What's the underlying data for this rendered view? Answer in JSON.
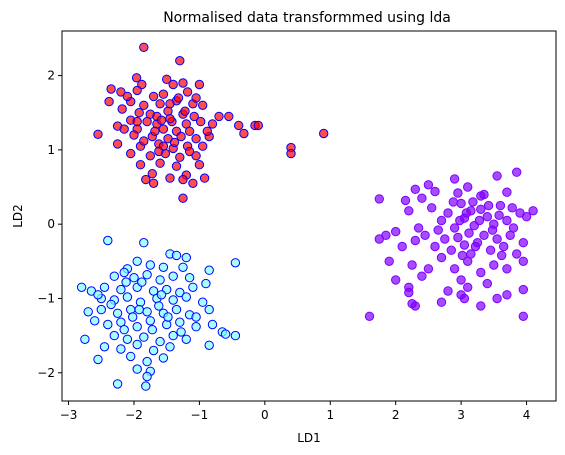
{
  "chart_data": {
    "type": "scatter",
    "title": "Normalised data transformmed using lda",
    "xlabel": "LD1",
    "ylabel": "LD2",
    "xlim": [
      -3.1,
      4.45
    ],
    "ylim": [
      -2.38,
      2.6
    ],
    "xticks": [
      -3,
      -2,
      -1,
      0,
      1,
      2,
      3,
      4
    ],
    "yticks": [
      -2,
      -1,
      0,
      1,
      2
    ],
    "grid": false,
    "legend": "none",
    "series": [
      {
        "fill": "#ff0000",
        "edge": "#0000ff",
        "points": [
          [
            -1.85,
            2.38
          ],
          [
            -1.3,
            2.2
          ],
          [
            -1.96,
            1.97
          ],
          [
            -1.88,
            1.88
          ],
          [
            -1.5,
            1.95
          ],
          [
            -1.4,
            1.88
          ],
          [
            -1.25,
            1.9
          ],
          [
            -1.0,
            1.88
          ],
          [
            -2.35,
            1.82
          ],
          [
            -2.2,
            1.78
          ],
          [
            -1.95,
            1.8
          ],
          [
            -1.7,
            1.72
          ],
          [
            -1.55,
            1.75
          ],
          [
            -1.18,
            1.78
          ],
          [
            -2.38,
            1.65
          ],
          [
            -2.05,
            1.65
          ],
          [
            -1.85,
            1.6
          ],
          [
            -1.6,
            1.62
          ],
          [
            -1.35,
            1.66
          ],
          [
            -1.1,
            1.62
          ],
          [
            -0.95,
            1.6
          ],
          [
            -2.18,
            1.55
          ],
          [
            -1.92,
            1.5
          ],
          [
            -1.75,
            1.48
          ],
          [
            -1.48,
            1.52
          ],
          [
            -1.25,
            1.48
          ],
          [
            -1.08,
            1.45
          ],
          [
            -0.7,
            1.45
          ],
          [
            -0.55,
            1.45
          ],
          [
            -2.05,
            1.4
          ],
          [
            -1.8,
            1.38
          ],
          [
            -1.65,
            1.35
          ],
          [
            -1.42,
            1.38
          ],
          [
            -1.2,
            1.35
          ],
          [
            -0.98,
            1.38
          ],
          [
            -0.8,
            1.35
          ],
          [
            -2.25,
            1.32
          ],
          [
            -1.95,
            1.28
          ],
          [
            -1.55,
            1.28
          ],
          [
            -1.35,
            1.25
          ],
          [
            -1.15,
            1.25
          ],
          [
            -0.4,
            1.33
          ],
          [
            -0.15,
            1.33
          ],
          [
            -0.1,
            1.33
          ],
          [
            -2.55,
            1.21
          ],
          [
            -2.0,
            1.2
          ],
          [
            -1.72,
            1.18
          ],
          [
            -1.48,
            1.15
          ],
          [
            -1.28,
            1.18
          ],
          [
            -1.05,
            1.15
          ],
          [
            -0.85,
            1.18
          ],
          [
            -0.32,
            1.22
          ],
          [
            0.9,
            1.22
          ],
          [
            -2.25,
            1.08
          ],
          [
            -1.9,
            1.05
          ],
          [
            -1.62,
            1.08
          ],
          [
            -1.4,
            1.02
          ],
          [
            -1.18,
            1.05
          ],
          [
            -0.95,
            1.05
          ],
          [
            -2.05,
            0.95
          ],
          [
            -1.75,
            0.92
          ],
          [
            -1.52,
            0.95
          ],
          [
            -1.3,
            0.9
          ],
          [
            -1.05,
            0.92
          ],
          [
            -1.9,
            0.8
          ],
          [
            -1.6,
            0.82
          ],
          [
            -1.35,
            0.78
          ],
          [
            -1.0,
            0.8
          ],
          [
            -1.72,
            0.68
          ],
          [
            -1.2,
            0.66
          ],
          [
            -1.82,
            0.6
          ],
          [
            -1.45,
            0.62
          ],
          [
            -1.25,
            0.6
          ],
          [
            -0.92,
            0.62
          ],
          [
            -1.7,
            0.55
          ],
          [
            -1.25,
            0.35
          ],
          [
            0.4,
            1.03
          ],
          [
            0.4,
            0.95
          ],
          [
            -1.65,
            1.45
          ],
          [
            -1.45,
            1.62
          ],
          [
            -1.58,
            1.4
          ],
          [
            -1.22,
            1.52
          ],
          [
            -1.38,
            1.1
          ],
          [
            -1.68,
            1.25
          ],
          [
            -1.85,
            1.12
          ],
          [
            -1.15,
            0.98
          ],
          [
            -0.88,
            1.25
          ],
          [
            -2.1,
            1.72
          ],
          [
            -1.32,
            1.7
          ],
          [
            -1.45,
            1.42
          ],
          [
            -1.05,
            1.7
          ],
          [
            -1.55,
            1.05
          ],
          [
            -1.95,
            1.38
          ],
          [
            -1.62,
            0.98
          ],
          [
            -1.1,
            0.55
          ],
          [
            -2.15,
            1.28
          ]
        ]
      },
      {
        "fill": "#7f00ff",
        "edge": "#7f00ff",
        "points": [
          [
            1.6,
            -1.24
          ],
          [
            1.75,
            0.34
          ],
          [
            2.15,
            0.32
          ],
          [
            2.3,
            0.47
          ],
          [
            2.5,
            0.53
          ],
          [
            2.6,
            0.44
          ],
          [
            2.9,
            0.61
          ],
          [
            2.95,
            0.42
          ],
          [
            3.1,
            0.5
          ],
          [
            3.3,
            0.38
          ],
          [
            3.55,
            0.65
          ],
          [
            3.7,
            0.43
          ],
          [
            3.85,
            0.7
          ],
          [
            2.0,
            -0.1
          ],
          [
            2.2,
            0.18
          ],
          [
            2.35,
            -0.05
          ],
          [
            2.55,
            0.22
          ],
          [
            2.7,
            0.05
          ],
          [
            2.8,
            0.15
          ],
          [
            2.9,
            -0.05
          ],
          [
            3.0,
            0.28
          ],
          [
            3.05,
            0.08
          ],
          [
            3.15,
            0.18
          ],
          [
            3.2,
            -0.02
          ],
          [
            3.3,
            0.2
          ],
          [
            3.4,
            0.1
          ],
          [
            3.5,
            0.0
          ],
          [
            3.6,
            0.25
          ],
          [
            3.7,
            0.05
          ],
          [
            3.8,
            -0.05
          ],
          [
            3.9,
            0.15
          ],
          [
            4.0,
            0.1
          ],
          [
            4.1,
            0.18
          ],
          [
            1.85,
            -0.15
          ],
          [
            1.75,
            -0.2
          ],
          [
            2.1,
            -0.3
          ],
          [
            2.3,
            -0.22
          ],
          [
            2.45,
            -0.15
          ],
          [
            2.6,
            -0.3
          ],
          [
            2.75,
            -0.2
          ],
          [
            2.85,
            -0.35
          ],
          [
            2.95,
            -0.18
          ],
          [
            3.05,
            -0.28
          ],
          [
            3.15,
            -0.4
          ],
          [
            3.25,
            -0.25
          ],
          [
            3.35,
            -0.15
          ],
          [
            3.45,
            -0.35
          ],
          [
            3.55,
            -0.2
          ],
          [
            3.65,
            -0.3
          ],
          [
            3.75,
            -0.15
          ],
          [
            3.85,
            -0.4
          ],
          [
            3.95,
            -0.25
          ],
          [
            1.9,
            -0.5
          ],
          [
            2.25,
            -0.55
          ],
          [
            2.5,
            -0.6
          ],
          [
            2.7,
            -0.45
          ],
          [
            2.9,
            -0.6
          ],
          [
            3.1,
            -0.5
          ],
          [
            3.3,
            -0.65
          ],
          [
            3.5,
            -0.55
          ],
          [
            3.7,
            -0.6
          ],
          [
            3.95,
            -0.5
          ],
          [
            2.0,
            -0.75
          ],
          [
            2.2,
            -0.85
          ],
          [
            2.4,
            -0.7
          ],
          [
            2.8,
            -0.9
          ],
          [
            3.0,
            -0.75
          ],
          [
            3.1,
            -0.85
          ],
          [
            3.4,
            -0.8
          ],
          [
            3.7,
            -0.95
          ],
          [
            2.2,
            -0.92
          ],
          [
            2.3,
            -1.1
          ],
          [
            2.7,
            -1.05
          ],
          [
            3.0,
            -0.95
          ],
          [
            3.05,
            -1.0
          ],
          [
            3.3,
            -1.1
          ],
          [
            3.55,
            -1.0
          ],
          [
            3.95,
            -0.88
          ],
          [
            2.25,
            -1.07
          ],
          [
            3.95,
            -1.24
          ],
          [
            3.08,
            0.15
          ],
          [
            3.18,
            0.3
          ],
          [
            3.28,
            0.05
          ],
          [
            3.12,
            -0.12
          ],
          [
            2.98,
            0.05
          ],
          [
            3.42,
            0.25
          ],
          [
            3.58,
            0.12
          ],
          [
            3.22,
            -0.3
          ],
          [
            3.02,
            -0.42
          ],
          [
            2.88,
            0.3
          ],
          [
            3.48,
            -0.08
          ],
          [
            3.62,
            -0.42
          ],
          [
            2.65,
            -0.08
          ],
          [
            3.35,
            0.4
          ],
          [
            3.78,
            0.22
          ],
          [
            2.4,
            0.35
          ]
        ]
      },
      {
        "fill": "#80ffff",
        "edge": "#0000ff",
        "points": [
          [
            -2.4,
            -0.22
          ],
          [
            -1.85,
            -0.25
          ],
          [
            -1.45,
            -0.4
          ],
          [
            -1.35,
            -0.42
          ],
          [
            -1.2,
            -0.45
          ],
          [
            -0.45,
            -0.52
          ],
          [
            -1.95,
            -0.5
          ],
          [
            -2.1,
            -0.6
          ],
          [
            -1.75,
            -0.55
          ],
          [
            -1.55,
            -0.58
          ],
          [
            -1.25,
            -0.58
          ],
          [
            -2.3,
            -0.7
          ],
          [
            -2.0,
            -0.72
          ],
          [
            -1.8,
            -0.68
          ],
          [
            -1.6,
            -0.75
          ],
          [
            -1.4,
            -0.7
          ],
          [
            -1.15,
            -0.72
          ],
          [
            -0.85,
            -0.62
          ],
          [
            -2.8,
            -0.85
          ],
          [
            -2.65,
            -0.9
          ],
          [
            -2.45,
            -0.85
          ],
          [
            -2.2,
            -0.88
          ],
          [
            -1.95,
            -0.85
          ],
          [
            -1.7,
            -0.9
          ],
          [
            -1.5,
            -0.88
          ],
          [
            -1.3,
            -0.92
          ],
          [
            -1.1,
            -0.85
          ],
          [
            -0.9,
            -0.8
          ],
          [
            -2.5,
            -1.0
          ],
          [
            -2.3,
            -1.02
          ],
          [
            -2.1,
            -0.98
          ],
          [
            -1.9,
            -1.05
          ],
          [
            -1.65,
            -1.0
          ],
          [
            -1.4,
            -1.02
          ],
          [
            -1.2,
            -0.98
          ],
          [
            -0.95,
            -1.05
          ],
          [
            -2.7,
            -1.18
          ],
          [
            -2.5,
            -1.15
          ],
          [
            -2.25,
            -1.2
          ],
          [
            -2.05,
            -1.15
          ],
          [
            -1.8,
            -1.18
          ],
          [
            -1.55,
            -1.2
          ],
          [
            -1.35,
            -1.15
          ],
          [
            -1.15,
            -1.22
          ],
          [
            -0.85,
            -1.15
          ],
          [
            -2.6,
            -1.3
          ],
          [
            -2.4,
            -1.35
          ],
          [
            -2.2,
            -1.32
          ],
          [
            -1.95,
            -1.38
          ],
          [
            -1.75,
            -1.3
          ],
          [
            -1.5,
            -1.35
          ],
          [
            -1.3,
            -1.32
          ],
          [
            -1.05,
            -1.38
          ],
          [
            -0.8,
            -1.35
          ],
          [
            -0.65,
            -1.45
          ],
          [
            -0.6,
            -1.48
          ],
          [
            -0.45,
            -1.5
          ],
          [
            -2.75,
            -1.55
          ],
          [
            -2.3,
            -1.5
          ],
          [
            -2.1,
            -1.55
          ],
          [
            -1.85,
            -1.52
          ],
          [
            -1.6,
            -1.58
          ],
          [
            -1.4,
            -1.5
          ],
          [
            -1.2,
            -1.55
          ],
          [
            -2.45,
            -1.65
          ],
          [
            -2.2,
            -1.68
          ],
          [
            -1.95,
            -1.62
          ],
          [
            -1.7,
            -1.7
          ],
          [
            -1.45,
            -1.65
          ],
          [
            -0.85,
            -1.63
          ],
          [
            -2.55,
            -1.82
          ],
          [
            -2.05,
            -1.78
          ],
          [
            -1.8,
            -1.85
          ],
          [
            -1.55,
            -1.8
          ],
          [
            -1.95,
            -1.95
          ],
          [
            -1.75,
            -1.98
          ],
          [
            -1.8,
            -2.05
          ],
          [
            -2.25,
            -2.15
          ],
          [
            -1.82,
            -2.18
          ],
          [
            -2.15,
            -0.65
          ],
          [
            -1.88,
            -0.78
          ],
          [
            -1.62,
            -1.1
          ],
          [
            -2.02,
            -1.25
          ],
          [
            -1.72,
            -1.42
          ],
          [
            -1.48,
            -1.25
          ],
          [
            -2.35,
            -1.08
          ],
          [
            -1.28,
            -1.45
          ],
          [
            -2.15,
            -1.42
          ],
          [
            -1.92,
            -1.15
          ],
          [
            -1.58,
            -0.95
          ],
          [
            -2.55,
            -0.95
          ],
          [
            -1.05,
            -1.25
          ],
          [
            -2.12,
            -0.78
          ]
        ]
      }
    ]
  }
}
